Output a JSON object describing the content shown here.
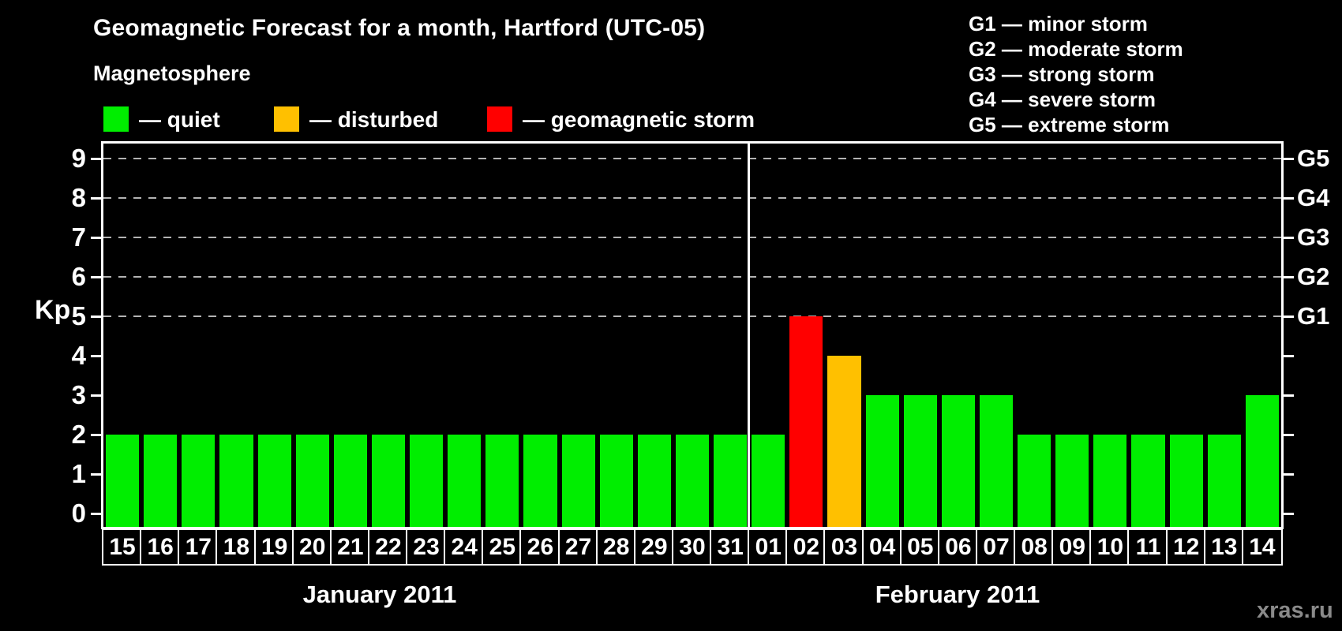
{
  "title": "Geomagnetic Forecast for a month, Hartford (UTC-05)",
  "legend": {
    "heading": "Magnetosphere",
    "items": [
      {
        "name": "quiet",
        "label": "— quiet",
        "color": "#00ee00"
      },
      {
        "name": "disturbed",
        "label": "— disturbed",
        "color": "#ffc000"
      },
      {
        "name": "storm",
        "label": "— geomagnetic storm",
        "color": "#ff0000"
      }
    ]
  },
  "storm_scale_legend": [
    "G1 — minor storm",
    "G2 — moderate storm",
    "G3 — strong storm",
    "G4 — severe storm",
    "G5 — extreme storm"
  ],
  "watermark": "xras.ru",
  "chart_data": {
    "type": "bar",
    "title": "Geomagnetic Forecast for a month, Hartford (UTC-05)",
    "ylabel": "Kp",
    "ylim": [
      0,
      9
    ],
    "yticks": [
      0,
      1,
      2,
      3,
      4,
      5,
      6,
      7,
      8,
      9
    ],
    "gridlines_at": [
      5,
      6,
      7,
      8,
      9
    ],
    "grid_on": true,
    "right_axis": [
      {
        "kp": 5,
        "label": "G1"
      },
      {
        "kp": 6,
        "label": "G2"
      },
      {
        "kp": 7,
        "label": "G3"
      },
      {
        "kp": 8,
        "label": "G4"
      },
      {
        "kp": 9,
        "label": "G5"
      }
    ],
    "colors": {
      "quiet": "#00ee00",
      "disturbed": "#ffc000",
      "storm": "#ff0000",
      "axis": "#ffffff",
      "grid": "#b3b3b3"
    },
    "months": [
      {
        "label": "January 2011",
        "start_index": 0,
        "days": 17
      },
      {
        "label": "February 2011",
        "start_index": 17,
        "days": 14
      }
    ],
    "bars": [
      {
        "day": "15",
        "kp": 2,
        "status": "quiet"
      },
      {
        "day": "16",
        "kp": 2,
        "status": "quiet"
      },
      {
        "day": "17",
        "kp": 2,
        "status": "quiet"
      },
      {
        "day": "18",
        "kp": 2,
        "status": "quiet"
      },
      {
        "day": "19",
        "kp": 2,
        "status": "quiet"
      },
      {
        "day": "20",
        "kp": 2,
        "status": "quiet"
      },
      {
        "day": "21",
        "kp": 2,
        "status": "quiet"
      },
      {
        "day": "22",
        "kp": 2,
        "status": "quiet"
      },
      {
        "day": "23",
        "kp": 2,
        "status": "quiet"
      },
      {
        "day": "24",
        "kp": 2,
        "status": "quiet"
      },
      {
        "day": "25",
        "kp": 2,
        "status": "quiet"
      },
      {
        "day": "26",
        "kp": 2,
        "status": "quiet"
      },
      {
        "day": "27",
        "kp": 2,
        "status": "quiet"
      },
      {
        "day": "28",
        "kp": 2,
        "status": "quiet"
      },
      {
        "day": "29",
        "kp": 2,
        "status": "quiet"
      },
      {
        "day": "30",
        "kp": 2,
        "status": "quiet"
      },
      {
        "day": "31",
        "kp": 2,
        "status": "quiet"
      },
      {
        "day": "01",
        "kp": 2,
        "status": "quiet"
      },
      {
        "day": "02",
        "kp": 5,
        "status": "storm"
      },
      {
        "day": "03",
        "kp": 4,
        "status": "disturbed"
      },
      {
        "day": "04",
        "kp": 3,
        "status": "quiet"
      },
      {
        "day": "05",
        "kp": 3,
        "status": "quiet"
      },
      {
        "day": "06",
        "kp": 3,
        "status": "quiet"
      },
      {
        "day": "07",
        "kp": 3,
        "status": "quiet"
      },
      {
        "day": "08",
        "kp": 2,
        "status": "quiet"
      },
      {
        "day": "09",
        "kp": 2,
        "status": "quiet"
      },
      {
        "day": "10",
        "kp": 2,
        "status": "quiet"
      },
      {
        "day": "11",
        "kp": 2,
        "status": "quiet"
      },
      {
        "day": "12",
        "kp": 2,
        "status": "quiet"
      },
      {
        "day": "13",
        "kp": 2,
        "status": "quiet"
      },
      {
        "day": "14",
        "kp": 3,
        "status": "quiet"
      }
    ]
  }
}
